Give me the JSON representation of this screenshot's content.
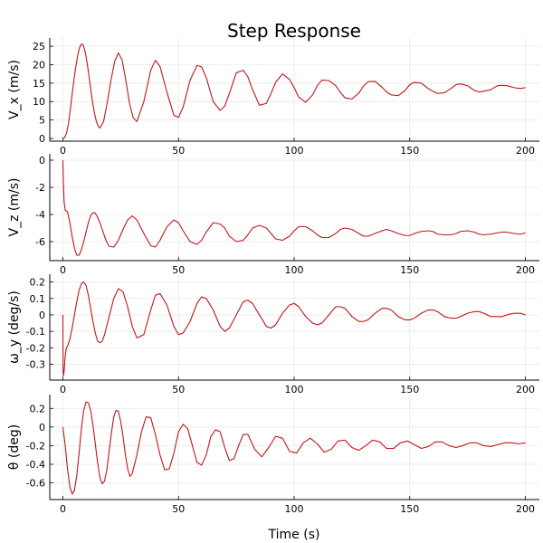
{
  "figure": {
    "title": "Step Response",
    "xlabel": "Time (s)"
  },
  "colors": {
    "series": "#c0161a",
    "grid": "#e6e6e6",
    "axis": "#000000"
  },
  "chart_data": [
    {
      "type": "line",
      "ylabel": "V_x (m/s)",
      "xlim": [
        0,
        200
      ],
      "ylim": [
        0,
        26
      ],
      "xticks": [
        0,
        50,
        100,
        150,
        200
      ],
      "yticks": [
        0,
        5,
        10,
        15,
        20,
        25
      ],
      "grid": true,
      "series": [
        {
          "x": [
            0,
            0.8,
            1.6,
            2.4,
            3.2,
            4,
            4.8,
            5.6,
            6.4,
            7.2,
            8,
            8.8,
            9.6,
            10.4,
            11.2,
            12,
            12.8,
            13.6,
            14.4,
            15.2,
            16,
            17.6,
            19.2,
            20.8,
            22.4,
            24,
            25.6,
            27.2,
            28.8,
            30.4,
            32,
            35,
            38,
            40,
            42,
            45,
            48,
            50,
            52,
            55,
            58,
            60,
            62,
            65,
            68,
            70,
            72,
            75,
            78,
            80,
            82,
            85,
            88,
            90,
            92,
            95,
            98,
            100,
            102,
            105,
            108,
            110,
            112,
            115,
            118,
            120,
            122,
            125,
            128,
            130,
            132,
            135,
            138,
            140,
            142,
            145,
            148,
            150,
            152,
            155,
            158,
            160,
            162,
            165,
            168,
            170,
            172,
            175,
            178,
            180,
            182,
            185,
            188,
            190,
            192,
            195,
            198,
            200
          ],
          "y": [
            0,
            0.3,
            1.5,
            4.0,
            7.8,
            12.0,
            16.0,
            19.5,
            22.5,
            24.6,
            25.6,
            25.3,
            23.6,
            20.8,
            17.3,
            13.5,
            10.0,
            7.0,
            4.8,
            3.4,
            2.8,
            4.6,
            9.8,
            15.8,
            20.9,
            23.2,
            21.3,
            15.8,
            9.6,
            5.6,
            4.6,
            10.0,
            18.5,
            21.2,
            19.5,
            12.5,
            6.3,
            5.7,
            8.5,
            15.8,
            19.8,
            19.4,
            16.5,
            10.0,
            7.6,
            8.8,
            12.2,
            17.8,
            18.5,
            16.7,
            13.3,
            9.0,
            9.5,
            12.2,
            15.2,
            17.5,
            16.0,
            13.8,
            11.2,
            9.8,
            11.8,
            14.3,
            15.8,
            15.7,
            14.3,
            12.5,
            11.0,
            10.7,
            12.3,
            14.2,
            15.4,
            15.5,
            13.9,
            12.6,
            11.8,
            11.6,
            13.0,
            14.6,
            15.2,
            15.0,
            13.5,
            12.8,
            12.2,
            12.4,
            13.6,
            14.6,
            14.8,
            14.3,
            13.0,
            12.6,
            12.8,
            13.2,
            14.3,
            14.4,
            14.3,
            13.8,
            13.5,
            13.8
          ],
          "name": ""
        }
      ]
    },
    {
      "type": "line",
      "ylabel": "V_z (m/s)",
      "xlim": [
        0,
        200
      ],
      "ylim": [
        -7.2,
        0
      ],
      "xticks": [
        0,
        50,
        100,
        150,
        200
      ],
      "yticks": [
        0,
        -2,
        -4,
        -6
      ],
      "grid": true,
      "series": [
        {
          "x": [
            0,
            0.2,
            0.5,
            1,
            2,
            3,
            4,
            5,
            6,
            7,
            8,
            9,
            10,
            11,
            12,
            13,
            14,
            15,
            16,
            17,
            18,
            19,
            20,
            22,
            24,
            26,
            28,
            30,
            32,
            35,
            38,
            40,
            42,
            45,
            48,
            50,
            52,
            55,
            58,
            60,
            62,
            65,
            68,
            70,
            72,
            75,
            78,
            80,
            82,
            85,
            88,
            90,
            92,
            95,
            98,
            100,
            102,
            105,
            108,
            110,
            112,
            115,
            118,
            120,
            122,
            125,
            128,
            130,
            132,
            135,
            138,
            140,
            142,
            145,
            148,
            150,
            152,
            155,
            158,
            160,
            162,
            165,
            168,
            170,
            172,
            175,
            178,
            180,
            182,
            185,
            188,
            190,
            192,
            195,
            198,
            200
          ],
          "y": [
            0,
            -1.5,
            -3.0,
            -3.7,
            -3.8,
            -4.6,
            -5.6,
            -6.5,
            -7.0,
            -7.0,
            -6.6,
            -6.0,
            -5.3,
            -4.6,
            -4.1,
            -3.85,
            -3.9,
            -4.2,
            -4.6,
            -5.1,
            -5.6,
            -6.05,
            -6.35,
            -6.4,
            -5.9,
            -5.1,
            -4.4,
            -4.1,
            -4.4,
            -5.4,
            -6.3,
            -6.4,
            -5.9,
            -4.9,
            -4.4,
            -4.6,
            -5.2,
            -6.0,
            -6.2,
            -5.9,
            -5.3,
            -4.6,
            -4.7,
            -5.0,
            -5.6,
            -6.0,
            -5.9,
            -5.5,
            -5.0,
            -4.8,
            -5.0,
            -5.4,
            -5.8,
            -5.9,
            -5.6,
            -5.2,
            -4.9,
            -4.9,
            -5.2,
            -5.5,
            -5.7,
            -5.7,
            -5.4,
            -5.1,
            -5.0,
            -5.1,
            -5.4,
            -5.6,
            -5.6,
            -5.4,
            -5.2,
            -5.1,
            -5.2,
            -5.4,
            -5.55,
            -5.55,
            -5.4,
            -5.25,
            -5.2,
            -5.25,
            -5.45,
            -5.5,
            -5.5,
            -5.4,
            -5.25,
            -5.2,
            -5.3,
            -5.45,
            -5.5,
            -5.45,
            -5.35,
            -5.3,
            -5.3,
            -5.4,
            -5.45,
            -5.35
          ],
          "name": ""
        }
      ]
    },
    {
      "type": "line",
      "ylabel": "ω_y (deg/s)",
      "xlim": [
        0,
        200
      ],
      "ylim": [
        -0.38,
        0.22
      ],
      "xticks": [
        0,
        50,
        100,
        150,
        200
      ],
      "yticks": [
        0.2,
        0.1,
        0.0,
        -0.1,
        -0.2,
        -0.3
      ],
      "grid": true,
      "series": [
        {
          "x": [
            0,
            0.1,
            0.3,
            0.6,
            1,
            1.5,
            2,
            3,
            4,
            5,
            6,
            7,
            8,
            9,
            10,
            11,
            12,
            13,
            14,
            15,
            16,
            17,
            18,
            20,
            22,
            24,
            26,
            28,
            30,
            32,
            35,
            38,
            40,
            42,
            45,
            48,
            50,
            52,
            55,
            58,
            60,
            62,
            65,
            68,
            70,
            72,
            75,
            78,
            80,
            82,
            85,
            88,
            90,
            92,
            95,
            98,
            100,
            102,
            105,
            108,
            110,
            112,
            115,
            118,
            120,
            122,
            125,
            128,
            130,
            132,
            135,
            138,
            140,
            142,
            145,
            148,
            150,
            152,
            155,
            158,
            160,
            162,
            165,
            168,
            170,
            172,
            175,
            178,
            180,
            182,
            185,
            188,
            190,
            192,
            195,
            198,
            200
          ],
          "y": [
            0,
            -0.35,
            -0.37,
            -0.33,
            -0.25,
            -0.2,
            -0.19,
            -0.15,
            -0.08,
            0.0,
            0.08,
            0.15,
            0.19,
            0.2,
            0.18,
            0.12,
            0.04,
            -0.04,
            -0.11,
            -0.16,
            -0.17,
            -0.16,
            -0.12,
            -0.01,
            0.1,
            0.16,
            0.14,
            0.05,
            -0.07,
            -0.14,
            -0.12,
            0.03,
            0.12,
            0.13,
            0.06,
            -0.07,
            -0.12,
            -0.11,
            -0.04,
            0.07,
            0.11,
            0.1,
            0.03,
            -0.07,
            -0.1,
            -0.08,
            0.0,
            0.08,
            0.09,
            0.07,
            0.0,
            -0.07,
            -0.08,
            -0.06,
            0.01,
            0.06,
            0.07,
            0.05,
            -0.01,
            -0.05,
            -0.06,
            -0.05,
            0.0,
            0.05,
            0.05,
            0.04,
            -0.01,
            -0.04,
            -0.04,
            -0.03,
            0.01,
            0.04,
            0.04,
            0.03,
            -0.01,
            -0.03,
            -0.03,
            -0.02,
            0.01,
            0.03,
            0.03,
            0.02,
            -0.01,
            -0.02,
            -0.02,
            -0.01,
            0.01,
            0.02,
            0.02,
            0.01,
            -0.01,
            -0.01,
            -0.01,
            0.0,
            0.01,
            0.01,
            0.0
          ],
          "name": ""
        }
      ]
    },
    {
      "type": "line",
      "ylabel": "θ (deg)",
      "xlim": [
        0,
        200
      ],
      "ylim": [
        -0.75,
        0.3
      ],
      "xticks": [
        0,
        50,
        100,
        150,
        200
      ],
      "yticks": [
        0.2,
        0.0,
        -0.2,
        -0.4,
        -0.6
      ],
      "grid": true,
      "series": [
        {
          "x": [
            0,
            1,
            2,
            3,
            4,
            5,
            6,
            7,
            8,
            9,
            10,
            11,
            12,
            13,
            14,
            15,
            16,
            17,
            18,
            19,
            20,
            21,
            22,
            23,
            24,
            25,
            26,
            27,
            28,
            29,
            30,
            32,
            34,
            36,
            38,
            40,
            42,
            44,
            46,
            48,
            50,
            52,
            54,
            56,
            58,
            60,
            62,
            64,
            66,
            68,
            70,
            72,
            74,
            76,
            78,
            80,
            83,
            86,
            89,
            92,
            95,
            98,
            101,
            104,
            107,
            110,
            113,
            116,
            119,
            122,
            125,
            128,
            131,
            134,
            137,
            140,
            143,
            146,
            149,
            152,
            155,
            158,
            161,
            164,
            167,
            170,
            173,
            176,
            179,
            182,
            185,
            188,
            191,
            194,
            197,
            200
          ],
          "y": [
            0,
            -0.2,
            -0.45,
            -0.64,
            -0.72,
            -0.68,
            -0.52,
            -0.28,
            -0.02,
            0.18,
            0.27,
            0.26,
            0.18,
            0.02,
            -0.18,
            -0.38,
            -0.54,
            -0.61,
            -0.58,
            -0.46,
            -0.26,
            -0.06,
            0.11,
            0.18,
            0.17,
            0.06,
            -0.1,
            -0.29,
            -0.45,
            -0.53,
            -0.5,
            -0.3,
            -0.05,
            0.11,
            0.1,
            -0.08,
            -0.3,
            -0.46,
            -0.45,
            -0.28,
            -0.05,
            0.03,
            -0.02,
            -0.2,
            -0.38,
            -0.41,
            -0.3,
            -0.1,
            -0.03,
            -0.05,
            -0.22,
            -0.36,
            -0.34,
            -0.2,
            -0.08,
            -0.08,
            -0.24,
            -0.32,
            -0.22,
            -0.1,
            -0.12,
            -0.26,
            -0.28,
            -0.17,
            -0.12,
            -0.18,
            -0.27,
            -0.24,
            -0.15,
            -0.14,
            -0.22,
            -0.25,
            -0.2,
            -0.14,
            -0.16,
            -0.23,
            -0.23,
            -0.17,
            -0.15,
            -0.19,
            -0.23,
            -0.21,
            -0.16,
            -0.16,
            -0.2,
            -0.22,
            -0.2,
            -0.17,
            -0.17,
            -0.2,
            -0.21,
            -0.19,
            -0.17,
            -0.17,
            -0.18,
            -0.17
          ],
          "name": ""
        }
      ]
    }
  ]
}
